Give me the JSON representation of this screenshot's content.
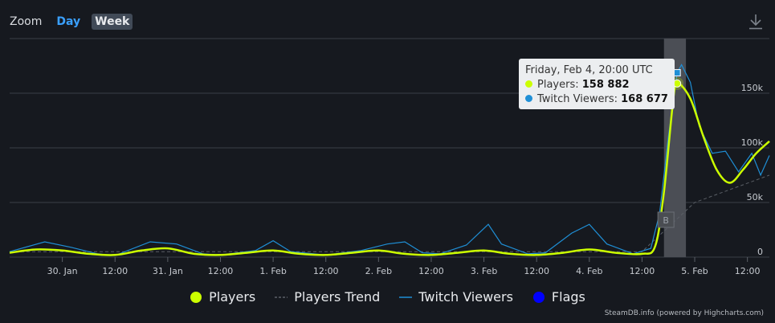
{
  "toolbar": {
    "zoom_label": "Zoom",
    "day_label": "Day",
    "week_label": "Week",
    "download_icon": "download-icon"
  },
  "colors": {
    "players": "#ccff00",
    "trend": "#5a5f66",
    "twitch": "#1f8fd6",
    "flags": "#0000ff",
    "background": "#16191f",
    "grid": "#3a3f47",
    "highlight": "#4b4e55"
  },
  "tooltip": {
    "title": "Friday, Feb 4, 20:00 UTC",
    "players_label": "Players:",
    "players_value": "158 882",
    "twitch_label": "Twitch Viewers:",
    "twitch_value": "168 677"
  },
  "legend": {
    "players": "Players",
    "trend": "Players Trend",
    "twitch": "Twitch Viewers",
    "flags": "Flags"
  },
  "flag_label": "B",
  "credits": "SteamDB.info (powered by Highcharts.com)",
  "chart_data": {
    "type": "line",
    "x_start": "2022-01-29T12:00",
    "x_end": "2022-02-05T17:00",
    "xticks": [
      "30. Jan",
      "12:00",
      "31. Jan",
      "12:00",
      "1. Feb",
      "12:00",
      "2. Feb",
      "12:00",
      "3. Feb",
      "12:00",
      "4. Feb",
      "12:00",
      "5. Feb",
      "12:00"
    ],
    "yticks": [
      "0",
      "50k",
      "100k",
      "150k"
    ],
    "ylim": [
      0,
      200000
    ],
    "grid": true,
    "legend_position": "bottom",
    "series": [
      {
        "name": "Players",
        "points": [
          [
            "2022-01-29T12:00",
            4000
          ],
          [
            "2022-01-29T18:00",
            7000
          ],
          [
            "2022-01-30T00:00",
            6000
          ],
          [
            "2022-01-30T06:00",
            3000
          ],
          [
            "2022-01-30T12:00",
            2000
          ],
          [
            "2022-01-30T18:00",
            6000
          ],
          [
            "2022-01-31T00:00",
            8000
          ],
          [
            "2022-01-31T06:00",
            3000
          ],
          [
            "2022-01-31T12:00",
            2000
          ],
          [
            "2022-01-31T18:00",
            4000
          ],
          [
            "2022-02-01T00:00",
            6000
          ],
          [
            "2022-02-01T06:00",
            3000
          ],
          [
            "2022-02-01T12:00",
            2000
          ],
          [
            "2022-02-01T18:00",
            4000
          ],
          [
            "2022-02-02T00:00",
            6000
          ],
          [
            "2022-02-02T06:00",
            3000
          ],
          [
            "2022-02-02T12:00",
            2000
          ],
          [
            "2022-02-02T18:00",
            4000
          ],
          [
            "2022-02-03T00:00",
            6000
          ],
          [
            "2022-02-03T06:00",
            3000
          ],
          [
            "2022-02-03T12:00",
            2000
          ],
          [
            "2022-02-03T18:00",
            4000
          ],
          [
            "2022-02-04T00:00",
            7000
          ],
          [
            "2022-02-04T06:00",
            4000
          ],
          [
            "2022-02-04T12:00",
            3000
          ],
          [
            "2022-02-04T15:00",
            10000
          ],
          [
            "2022-02-04T17:00",
            60000
          ],
          [
            "2022-02-04T19:00",
            140000
          ],
          [
            "2022-02-04T20:00",
            158882
          ],
          [
            "2022-02-04T23:00",
            145000
          ],
          [
            "2022-02-05T02:00",
            110000
          ],
          [
            "2022-02-05T05:00",
            80000
          ],
          [
            "2022-02-05T08:00",
            68000
          ],
          [
            "2022-02-05T11:00",
            80000
          ],
          [
            "2022-02-05T14:00",
            95000
          ],
          [
            "2022-02-05T17:00",
            106000
          ]
        ]
      },
      {
        "name": "Players Trend",
        "points": [
          [
            "2022-01-29T12:00",
            5000
          ],
          [
            "2022-02-04T12:00",
            5000
          ],
          [
            "2022-02-05T00:00",
            50000
          ],
          [
            "2022-02-05T17:00",
            75000
          ]
        ]
      },
      {
        "name": "Twitch Viewers",
        "points": [
          [
            "2022-01-29T12:00",
            5000
          ],
          [
            "2022-01-29T20:00",
            14000
          ],
          [
            "2022-01-30T02:00",
            9000
          ],
          [
            "2022-01-30T08:00",
            3000
          ],
          [
            "2022-01-30T12:00",
            1500
          ],
          [
            "2022-01-30T20:00",
            14000
          ],
          [
            "2022-01-31T02:00",
            12000
          ],
          [
            "2022-01-31T08:00",
            3000
          ],
          [
            "2022-01-31T12:00",
            2000
          ],
          [
            "2022-01-31T20:00",
            6000
          ],
          [
            "2022-02-01T00:00",
            15000
          ],
          [
            "2022-02-01T04:00",
            5000
          ],
          [
            "2022-02-01T12:00",
            2000
          ],
          [
            "2022-02-01T20:00",
            6000
          ],
          [
            "2022-02-02T02:00",
            12000
          ],
          [
            "2022-02-02T06:00",
            14000
          ],
          [
            "2022-02-02T10:00",
            4000
          ],
          [
            "2022-02-02T14:00",
            3000
          ],
          [
            "2022-02-02T20:00",
            11000
          ],
          [
            "2022-02-03T01:00",
            30000
          ],
          [
            "2022-02-03T04:00",
            12000
          ],
          [
            "2022-02-03T10:00",
            3000
          ],
          [
            "2022-02-03T14:00",
            4000
          ],
          [
            "2022-02-03T20:00",
            22000
          ],
          [
            "2022-02-04T00:00",
            30000
          ],
          [
            "2022-02-04T04:00",
            12000
          ],
          [
            "2022-02-04T10:00",
            3000
          ],
          [
            "2022-02-04T14:00",
            8000
          ],
          [
            "2022-02-04T16:00",
            40000
          ],
          [
            "2022-02-04T18:00",
            110000
          ],
          [
            "2022-02-04T20:00",
            168677
          ],
          [
            "2022-02-04T21:00",
            176000
          ],
          [
            "2022-02-04T23:00",
            160000
          ],
          [
            "2022-02-05T01:00",
            120000
          ],
          [
            "2022-02-05T04:00",
            95000
          ],
          [
            "2022-02-05T07:00",
            97000
          ],
          [
            "2022-02-05T10:00",
            78000
          ],
          [
            "2022-02-05T13:00",
            95000
          ],
          [
            "2022-02-05T15:00",
            75000
          ],
          [
            "2022-02-05T17:00",
            93000
          ]
        ]
      }
    ],
    "highlight": {
      "x": "2022-02-04T20:00",
      "players": 158882,
      "twitch": 168677
    },
    "flags": [
      {
        "x": "2022-02-04T20:00",
        "label": "B"
      }
    ]
  }
}
